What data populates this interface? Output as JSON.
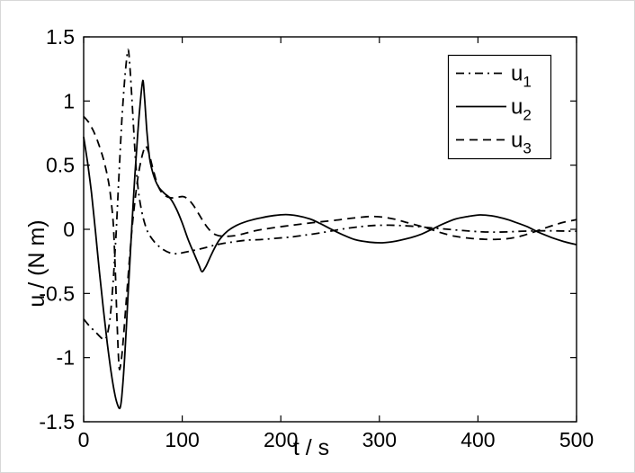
{
  "figure": {
    "background": "#ffffff",
    "line_color": "#000000"
  },
  "axes": {
    "xlabel": "t / s",
    "ylabel": "u / (N m)",
    "xlim": [
      0,
      500
    ],
    "ylim": [
      -1.5,
      1.5
    ],
    "xticks": [
      0,
      100,
      200,
      300,
      400,
      500
    ],
    "xtick_labels": [
      "0",
      "100",
      "200",
      "300",
      "400",
      "500"
    ],
    "yticks": [
      1.5,
      1,
      0.5,
      0,
      -0.5,
      -1,
      -1.5
    ],
    "ytick_labels": [
      "1.5",
      "1",
      "0.5",
      "0",
      "-0.5",
      "-1",
      "-1.5"
    ],
    "grid": false,
    "box": true
  },
  "legend": {
    "position": "upper right",
    "entries": [
      {
        "base": "u",
        "sub": "1",
        "style": "dashdot"
      },
      {
        "base": "u",
        "sub": "2",
        "style": "solid"
      },
      {
        "base": "u",
        "sub": "3",
        "style": "dashed"
      }
    ]
  },
  "chart_data": {
    "type": "line",
    "title": "",
    "xlabel": "t / s",
    "ylabel": "u / (N m)",
    "xlim": [
      0,
      500
    ],
    "ylim": [
      -1.5,
      1.5
    ],
    "legend_position": "upper right",
    "grid": false,
    "series": [
      {
        "name": "u1",
        "style": "dashdot",
        "points": [
          [
            0,
            -0.7
          ],
          [
            6,
            -0.755
          ],
          [
            12,
            -0.8
          ],
          [
            17,
            -0.84
          ],
          [
            21,
            -0.86
          ],
          [
            24,
            -0.82
          ],
          [
            27,
            -0.68
          ],
          [
            30,
            -0.4
          ],
          [
            33,
            -0.02
          ],
          [
            36,
            0.45
          ],
          [
            39,
            0.88
          ],
          [
            42,
            1.2
          ],
          [
            45,
            1.4
          ],
          [
            47,
            1.26
          ],
          [
            50,
            0.88
          ],
          [
            53,
            0.5
          ],
          [
            56,
            0.27
          ],
          [
            60,
            0.1
          ],
          [
            65,
            -0.02
          ],
          [
            72,
            -0.1
          ],
          [
            80,
            -0.155
          ],
          [
            88,
            -0.185
          ],
          [
            95,
            -0.19
          ],
          [
            105,
            -0.175
          ],
          [
            120,
            -0.15
          ],
          [
            135,
            -0.12
          ],
          [
            150,
            -0.1
          ],
          [
            165,
            -0.085
          ],
          [
            180,
            -0.08
          ],
          [
            195,
            -0.07
          ],
          [
            210,
            -0.06
          ],
          [
            225,
            -0.045
          ],
          [
            240,
            -0.028
          ],
          [
            252,
            -0.012
          ],
          [
            265,
            0.005
          ],
          [
            280,
            0.02
          ],
          [
            295,
            0.03
          ],
          [
            310,
            0.032
          ],
          [
            325,
            0.028
          ],
          [
            340,
            0.02
          ],
          [
            355,
            0.01
          ],
          [
            370,
            0.0
          ],
          [
            385,
            -0.01
          ],
          [
            400,
            -0.018
          ],
          [
            415,
            -0.022
          ],
          [
            430,
            -0.02
          ],
          [
            445,
            -0.015
          ],
          [
            460,
            -0.012
          ],
          [
            475,
            -0.012
          ],
          [
            490,
            -0.014
          ],
          [
            500,
            -0.015
          ]
        ]
      },
      {
        "name": "u2",
        "style": "solid",
        "points": [
          [
            0,
            0.72
          ],
          [
            4,
            0.52
          ],
          [
            8,
            0.28
          ],
          [
            12,
            -0.02
          ],
          [
            16,
            -0.33
          ],
          [
            20,
            -0.62
          ],
          [
            24,
            -0.89
          ],
          [
            28,
            -1.12
          ],
          [
            32,
            -1.3
          ],
          [
            35,
            -1.38
          ],
          [
            37,
            -1.39
          ],
          [
            39,
            -1.28
          ],
          [
            42,
            -0.95
          ],
          [
            45,
            -0.52
          ],
          [
            48,
            -0.1
          ],
          [
            51,
            0.3
          ],
          [
            54,
            0.65
          ],
          [
            57,
            0.95
          ],
          [
            60,
            1.16
          ],
          [
            62,
            1.0
          ],
          [
            64,
            0.78
          ],
          [
            67,
            0.55
          ],
          [
            71,
            0.42
          ],
          [
            76,
            0.33
          ],
          [
            82,
            0.28
          ],
          [
            88,
            0.24
          ],
          [
            94,
            0.16
          ],
          [
            100,
            0.05
          ],
          [
            106,
            -0.08
          ],
          [
            112,
            -0.19
          ],
          [
            117,
            -0.28
          ],
          [
            120,
            -0.33
          ],
          [
            124,
            -0.29
          ],
          [
            130,
            -0.19
          ],
          [
            137,
            -0.09
          ],
          [
            145,
            -0.02
          ],
          [
            155,
            0.03
          ],
          [
            167,
            0.065
          ],
          [
            180,
            0.09
          ],
          [
            193,
            0.107
          ],
          [
            205,
            0.115
          ],
          [
            217,
            0.105
          ],
          [
            230,
            0.08
          ],
          [
            240,
            0.045
          ],
          [
            250,
            0.005
          ],
          [
            262,
            -0.04
          ],
          [
            275,
            -0.08
          ],
          [
            290,
            -0.1
          ],
          [
            303,
            -0.105
          ],
          [
            317,
            -0.092
          ],
          [
            332,
            -0.065
          ],
          [
            342,
            -0.04
          ],
          [
            352,
            -0.005
          ],
          [
            364,
            0.04
          ],
          [
            377,
            0.08
          ],
          [
            390,
            0.1
          ],
          [
            402,
            0.112
          ],
          [
            414,
            0.105
          ],
          [
            426,
            0.085
          ],
          [
            438,
            0.055
          ],
          [
            450,
            0.02
          ],
          [
            462,
            -0.025
          ],
          [
            475,
            -0.065
          ],
          [
            487,
            -0.095
          ],
          [
            500,
            -0.12
          ]
        ]
      },
      {
        "name": "u3",
        "style": "dashed",
        "points": [
          [
            0,
            0.88
          ],
          [
            5,
            0.835
          ],
          [
            10,
            0.765
          ],
          [
            15,
            0.67
          ],
          [
            20,
            0.55
          ],
          [
            24,
            0.42
          ],
          [
            27,
            0.28
          ],
          [
            30,
            0.05
          ],
          [
            32,
            -0.3
          ],
          [
            34,
            -0.75
          ],
          [
            36,
            -1.08
          ],
          [
            38,
            -1.03
          ],
          [
            40,
            -0.88
          ],
          [
            43,
            -0.58
          ],
          [
            46,
            -0.28
          ],
          [
            49,
            0.0
          ],
          [
            52,
            0.22
          ],
          [
            55,
            0.4
          ],
          [
            58,
            0.53
          ],
          [
            61,
            0.62
          ],
          [
            63,
            0.65
          ],
          [
            66,
            0.6
          ],
          [
            70,
            0.48
          ],
          [
            74,
            0.37
          ],
          [
            78,
            0.3
          ],
          [
            83,
            0.26
          ],
          [
            89,
            0.245
          ],
          [
            95,
            0.25
          ],
          [
            101,
            0.255
          ],
          [
            106,
            0.235
          ],
          [
            111,
            0.19
          ],
          [
            116,
            0.13
          ],
          [
            121,
            0.065
          ],
          [
            126,
            0.01
          ],
          [
            131,
            -0.03
          ],
          [
            137,
            -0.05
          ],
          [
            145,
            -0.055
          ],
          [
            153,
            -0.05
          ],
          [
            162,
            -0.035
          ],
          [
            172,
            -0.015
          ],
          [
            182,
            0.0
          ],
          [
            195,
            0.015
          ],
          [
            210,
            0.03
          ],
          [
            225,
            0.045
          ],
          [
            240,
            0.058
          ],
          [
            255,
            0.07
          ],
          [
            270,
            0.085
          ],
          [
            283,
            0.095
          ],
          [
            292,
            0.1
          ],
          [
            303,
            0.095
          ],
          [
            315,
            0.08
          ],
          [
            327,
            0.055
          ],
          [
            340,
            0.028
          ],
          [
            352,
            0.0
          ],
          [
            364,
            -0.03
          ],
          [
            377,
            -0.055
          ],
          [
            392,
            -0.07
          ],
          [
            407,
            -0.078
          ],
          [
            420,
            -0.078
          ],
          [
            433,
            -0.07
          ],
          [
            445,
            -0.05
          ],
          [
            457,
            -0.02
          ],
          [
            468,
            0.01
          ],
          [
            478,
            0.035
          ],
          [
            488,
            0.057
          ],
          [
            500,
            0.075
          ]
        ]
      }
    ]
  }
}
